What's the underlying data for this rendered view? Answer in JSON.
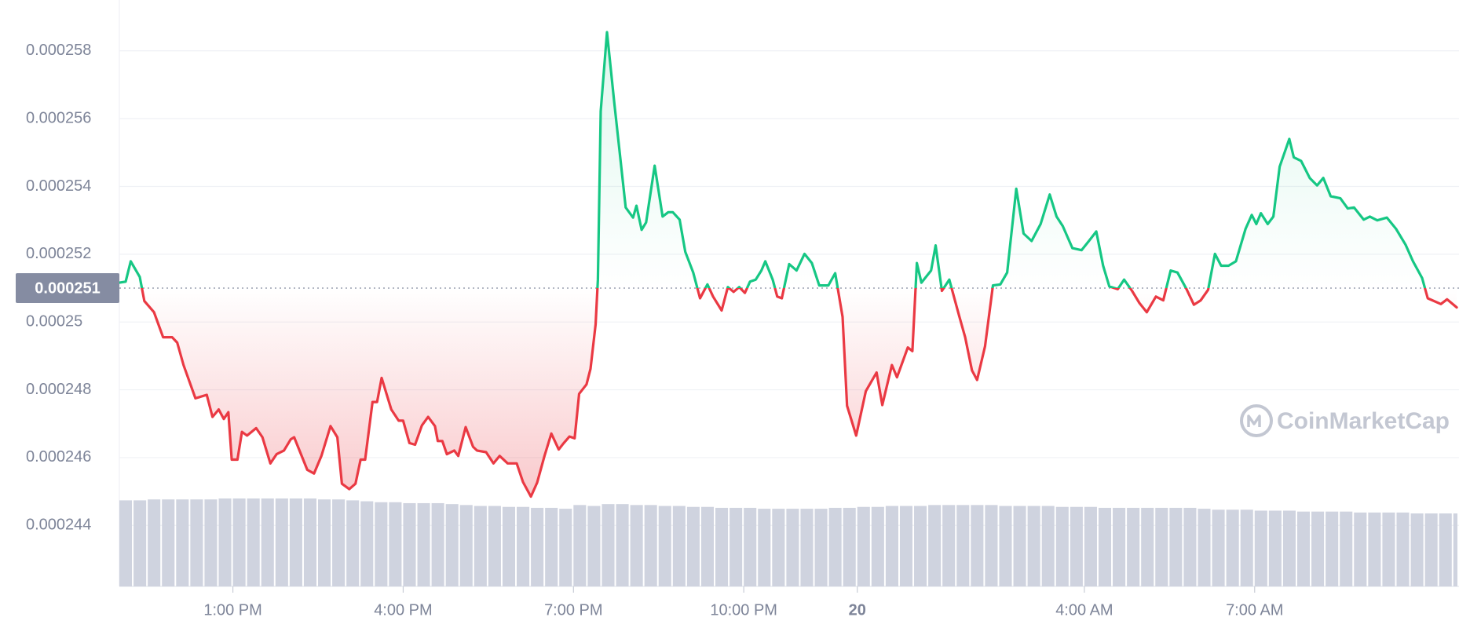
{
  "chart_data": {
    "type": "line",
    "watermark": "CoinMarketCap",
    "up_color": "#16c784",
    "down_color": "#ea3943",
    "volume_color": "#cfd3df",
    "grid": true,
    "xlim": [
      11,
      34.6
    ],
    "ylim": [
      0.0002422,
      0.0002595
    ],
    "yticks": [
      0.000244,
      0.000246,
      0.000248,
      0.00025,
      0.000252,
      0.000254,
      0.000256,
      0.000258
    ],
    "xticks": [
      {
        "value": 13,
        "label": "1:00 PM"
      },
      {
        "value": 16,
        "label": "4:00 PM"
      },
      {
        "value": 19,
        "label": "7:00 PM"
      },
      {
        "value": 22,
        "label": "10:00 PM"
      },
      {
        "value": 24,
        "label": "20"
      },
      {
        "value": 28,
        "label": "4:00 AM"
      },
      {
        "value": 31,
        "label": "7:00 AM"
      }
    ],
    "reference": {
      "value": 0.000251
    },
    "x": [
      11.0,
      11.11,
      11.2,
      11.36,
      11.44,
      11.61,
      11.77,
      11.93,
      12.02,
      12.13,
      12.34,
      12.54,
      12.64,
      12.75,
      12.84,
      12.92,
      12.98,
      13.08,
      13.16,
      13.25,
      13.41,
      13.52,
      13.66,
      13.77,
      13.9,
      14.02,
      14.08,
      14.2,
      14.31,
      14.43,
      14.56,
      14.72,
      14.84,
      14.92,
      15.05,
      15.16,
      15.25,
      15.33,
      15.46,
      15.54,
      15.62,
      15.79,
      15.92,
      16.0,
      16.11,
      16.21,
      16.33,
      16.44,
      16.56,
      16.61,
      16.69,
      16.77,
      16.9,
      16.97,
      17.1,
      17.23,
      17.3,
      17.46,
      17.59,
      17.7,
      17.84,
      18.0,
      18.11,
      18.25,
      18.36,
      18.49,
      18.61,
      18.74,
      18.82,
      18.93,
      19.02,
      19.1,
      19.23,
      19.3,
      19.39,
      19.43,
      19.48,
      19.59,
      19.72,
      19.92,
      20.05,
      20.11,
      20.2,
      20.28,
      20.43,
      20.57,
      20.67,
      20.75,
      20.87,
      20.97,
      21.11,
      21.23,
      21.36,
      21.46,
      21.61,
      21.72,
      21.82,
      21.92,
      22.02,
      22.11,
      22.21,
      22.31,
      22.38,
      22.51,
      22.59,
      22.67,
      22.8,
      22.93,
      23.07,
      23.2,
      23.33,
      23.49,
      23.61,
      23.74,
      23.82,
      23.98,
      24.15,
      24.34,
      24.44,
      24.61,
      24.7,
      24.89,
      24.97,
      25.05,
      25.13,
      25.3,
      25.38,
      25.49,
      25.62,
      25.79,
      25.9,
      26.02,
      26.11,
      26.25,
      26.39,
      26.52,
      26.64,
      26.8,
      26.93,
      27.07,
      27.23,
      27.39,
      27.51,
      27.62,
      27.79,
      27.95,
      28.08,
      28.21,
      28.33,
      28.44,
      28.59,
      28.7,
      28.84,
      28.97,
      29.1,
      29.26,
      29.39,
      29.52,
      29.64,
      29.8,
      29.93,
      30.05,
      30.18,
      30.3,
      30.41,
      30.54,
      30.67,
      30.84,
      30.95,
      31.03,
      31.11,
      31.23,
      31.33,
      31.44,
      31.61,
      31.69,
      31.82,
      31.97,
      32.1,
      32.21,
      32.34,
      32.51,
      32.64,
      32.75,
      32.92,
      33.03,
      33.16,
      33.33,
      33.49,
      33.66,
      33.79,
      33.95,
      34.05,
      34.28,
      34.39,
      34.56
    ],
    "values": [
      0.00025116,
      0.00025119,
      0.00025179,
      0.00025133,
      0.00025062,
      0.00025029,
      0.00024955,
      0.00024955,
      0.00024939,
      0.00024873,
      0.00024775,
      0.00024785,
      0.0002472,
      0.00024742,
      0.00024714,
      0.00024734,
      0.00024594,
      0.00024594,
      0.00024676,
      0.00024665,
      0.00024687,
      0.0002466,
      0.00024583,
      0.0002461,
      0.00024621,
      0.00024654,
      0.0002466,
      0.0002461,
      0.00024564,
      0.00024553,
      0.00024605,
      0.00024693,
      0.0002466,
      0.00024523,
      0.00024507,
      0.00024523,
      0.00024594,
      0.00024594,
      0.00024764,
      0.00024764,
      0.00024835,
      0.00024742,
      0.00024709,
      0.00024709,
      0.00024643,
      0.00024638,
      0.00024695,
      0.0002472,
      0.00024693,
      0.00024649,
      0.00024649,
      0.0002461,
      0.00024621,
      0.00024605,
      0.0002469,
      0.00024632,
      0.00024621,
      0.00024616,
      0.00024583,
      0.00024605,
      0.00024583,
      0.00024583,
      0.00024528,
      0.00024485,
      0.00024526,
      0.00024605,
      0.00024671,
      0.00024624,
      0.00024641,
      0.00024662,
      0.00024657,
      0.00024788,
      0.00024816,
      0.00024862,
      0.00024993,
      0.00025125,
      0.00025622,
      0.00025855,
      0.00025644,
      0.00025338,
      0.00025308,
      0.00025343,
      0.00025272,
      0.00025294,
      0.00025461,
      0.00025311,
      0.00025324,
      0.00025324,
      0.00025302,
      0.00025207,
      0.00025146,
      0.0002507,
      0.00025111,
      0.00025075,
      0.00025034,
      0.00025103,
      0.00025089,
      0.00025103,
      0.00025086,
      0.00025119,
      0.00025125,
      0.00025152,
      0.00025179,
      0.00025125,
      0.00025075,
      0.0002507,
      0.00025171,
      0.00025152,
      0.00025201,
      0.00025174,
      0.00025108,
      0.00025108,
      0.00025144,
      0.00025015,
      0.00024753,
      0.00024665,
      0.00024796,
      0.00024851,
      0.00024755,
      0.00024873,
      0.00024837,
      0.00024925,
      0.00024914,
      0.00025174,
      0.00025116,
      0.00025152,
      0.00025226,
      0.00025092,
      0.00025125,
      0.00025021,
      0.00024955,
      0.00024857,
      0.00024829,
      0.00024928,
      0.00025108,
      0.00025111,
      0.00025146,
      0.00025393,
      0.00025261,
      0.00025239,
      0.00025289,
      0.00025376,
      0.00025311,
      0.00025283,
      0.00025218,
      0.00025212,
      0.00025239,
      0.00025267,
      0.00025166,
      0.00025105,
      0.00025097,
      0.00025125,
      0.00025092,
      0.00025056,
      0.00025029,
      0.00025075,
      0.00025064,
      0.00025152,
      0.00025146,
      0.00025097,
      0.00025051,
      0.00025064,
      0.00025095,
      0.00025201,
      0.00025166,
      0.00025166,
      0.00025179,
      0.00025275,
      0.00025316,
      0.00025289,
      0.00025321,
      0.00025289,
      0.00025311,
      0.00025458,
      0.0002554,
      0.00025486,
      0.00025475,
      0.00025425,
      0.00025403,
      0.00025425,
      0.00025371,
      0.00025365,
      0.00025335,
      0.00025338,
      0.00025302,
      0.00025311,
      0.000253,
      0.00025308,
      0.00025275,
      0.00025228,
      0.00025179,
      0.0002513,
      0.0002507,
      0.00025053,
      0.00025067,
      0.00025043
    ],
    "volume": {
      "x": [
        11,
        11.25,
        11.5,
        11.75,
        12,
        12.25,
        12.5,
        12.75,
        13,
        13.25,
        13.5,
        13.75,
        14,
        14.25,
        14.5,
        14.75,
        15,
        15.25,
        15.5,
        15.75,
        16,
        16.25,
        16.5,
        16.75,
        17,
        17.25,
        17.5,
        17.75,
        18,
        18.25,
        18.5,
        18.75,
        19,
        19.25,
        19.5,
        19.75,
        20,
        20.25,
        20.5,
        20.75,
        21,
        21.25,
        21.5,
        21.75,
        22,
        22.25,
        22.5,
        22.75,
        23,
        23.25,
        23.5,
        23.75,
        24,
        24.25,
        24.5,
        24.75,
        25,
        25.25,
        25.5,
        25.75,
        26,
        26.25,
        26.5,
        26.75,
        27,
        27.25,
        27.5,
        27.75,
        28,
        28.25,
        28.5,
        28.75,
        29,
        29.25,
        29.5,
        29.75,
        30,
        30.25,
        30.5,
        30.75,
        31,
        31.25,
        31.5,
        31.75,
        32,
        32.25,
        32.5,
        32.75,
        33,
        33.25,
        33.5,
        33.75,
        34,
        34.25,
        34.5
      ],
      "values": [
        92,
        92,
        93,
        93,
        93,
        93,
        93,
        94,
        94,
        94,
        94,
        94,
        94,
        94,
        93,
        93,
        92,
        91,
        90,
        90,
        89,
        89,
        89,
        88,
        87,
        86,
        86,
        85,
        85,
        84,
        84,
        83,
        87,
        86,
        88,
        88,
        87,
        87,
        86,
        86,
        85,
        85,
        84,
        84,
        84,
        83,
        83,
        83,
        83,
        83,
        84,
        84,
        85,
        85,
        86,
        86,
        86,
        87,
        87,
        87,
        87,
        87,
        86,
        86,
        86,
        86,
        85,
        85,
        85,
        84,
        84,
        84,
        84,
        84,
        84,
        84,
        83,
        82,
        82,
        82,
        81,
        81,
        81,
        80,
        80,
        80,
        80,
        79,
        79,
        79,
        79,
        78,
        78,
        78,
        78
      ]
    }
  }
}
